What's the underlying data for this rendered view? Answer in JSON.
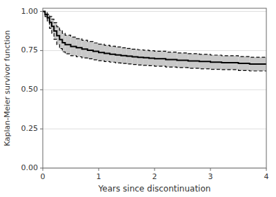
{
  "chart_data": {
    "type": "step",
    "xlabel": "Years since discontinuation",
    "ylabel": "Kaplan-Meier survivor function",
    "xlim": [
      0,
      4
    ],
    "ylim": [
      0.0,
      1.02
    ],
    "xticks": [
      0,
      1,
      2,
      3,
      4
    ],
    "yticks": [
      {
        "value": 0.0,
        "label": "0.00"
      },
      {
        "value": 0.25,
        "label": "0.25"
      },
      {
        "value": 0.5,
        "label": "0.50"
      },
      {
        "value": 0.75,
        "label": "0.75"
      },
      {
        "value": 1.0,
        "label": "1.00"
      }
    ],
    "grid": true,
    "color": "#c8c8c8",
    "x": [
      0.0,
      0.04,
      0.08,
      0.12,
      0.16,
      0.2,
      0.25,
      0.3,
      0.35,
      0.4,
      0.5,
      0.6,
      0.7,
      0.8,
      0.9,
      1.0,
      1.1,
      1.2,
      1.3,
      1.4,
      1.5,
      1.6,
      1.7,
      1.8,
      1.9,
      2.0,
      2.2,
      2.4,
      2.6,
      2.8,
      3.0,
      3.2,
      3.5,
      3.7,
      4.0
    ],
    "series": [
      {
        "type": "step",
        "color": "#000000",
        "line_style": "solid",
        "values": [
          1.0,
          0.98,
          0.96,
          0.93,
          0.905,
          0.875,
          0.845,
          0.82,
          0.8,
          0.788,
          0.776,
          0.768,
          0.76,
          0.752,
          0.745,
          0.738,
          0.732,
          0.727,
          0.722,
          0.718,
          0.714,
          0.71,
          0.707,
          0.704,
          0.701,
          0.698,
          0.693,
          0.688,
          0.684,
          0.68,
          0.676,
          0.673,
          0.668,
          0.664,
          0.66
        ]
      },
      {
        "type": "step",
        "color": "#000000",
        "line_style": "dashed",
        "values": [
          1.0,
          0.993,
          0.982,
          0.968,
          0.95,
          0.928,
          0.902,
          0.88,
          0.86,
          0.848,
          0.836,
          0.826,
          0.816,
          0.807,
          0.799,
          0.791,
          0.784,
          0.778,
          0.773,
          0.768,
          0.763,
          0.759,
          0.755,
          0.752,
          0.749,
          0.746,
          0.74,
          0.735,
          0.73,
          0.726,
          0.721,
          0.717,
          0.712,
          0.707,
          0.702
        ]
      },
      {
        "type": "step",
        "color": "#000000",
        "line_style": "dashed",
        "values": [
          1.0,
          0.967,
          0.938,
          0.892,
          0.86,
          0.822,
          0.788,
          0.762,
          0.742,
          0.729,
          0.717,
          0.71,
          0.703,
          0.697,
          0.691,
          0.685,
          0.68,
          0.676,
          0.671,
          0.668,
          0.664,
          0.661,
          0.658,
          0.656,
          0.653,
          0.65,
          0.645,
          0.641,
          0.637,
          0.634,
          0.63,
          0.628,
          0.623,
          0.62,
          0.617
        ]
      }
    ]
  }
}
